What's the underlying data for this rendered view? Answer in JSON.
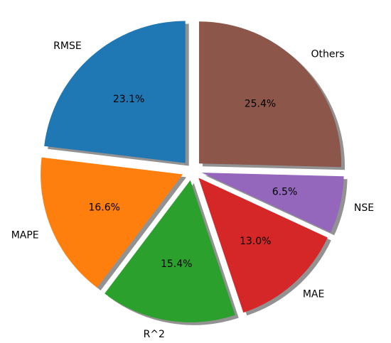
{
  "chart_data": {
    "type": "pie",
    "title": "",
    "categories": [
      "RMSE",
      "MAPE",
      "R^2",
      "MAE",
      "NSE",
      "Others"
    ],
    "values": [
      23.1,
      16.6,
      15.4,
      13.0,
      6.5,
      25.4
    ],
    "percent_labels": [
      "23.1%",
      "16.6%",
      "15.4%",
      "13.0%",
      "6.5%",
      "25.4%"
    ],
    "colors": [
      "#1f77b4",
      "#ff7f0e",
      "#2ca02c",
      "#d62728",
      "#9467bd",
      "#8c564b"
    ],
    "start_angle": "top, counter-clockwise",
    "exploded": true,
    "shadow": true,
    "legend": "none"
  }
}
